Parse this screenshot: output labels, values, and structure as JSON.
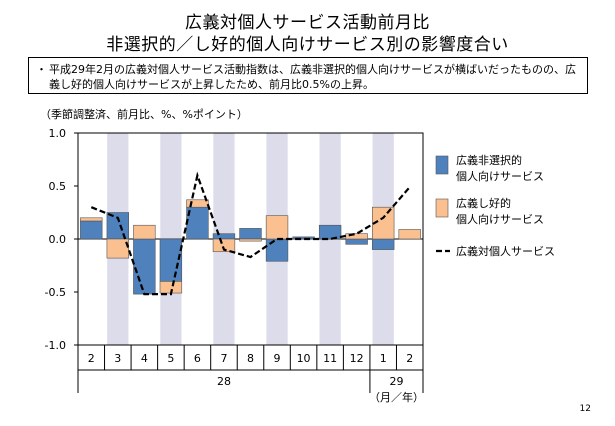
{
  "titles": {
    "line1": "広義対個人サービス活動前月比",
    "line2": "非選択的／し好的個人向けサービス別の影響度合い"
  },
  "summary": {
    "bullet": "・",
    "text": "平成29年2月の広義対個人サービス活動指数は、広義非選択的個人向けサービスが横ばいだったものの、広義し好的個人向けサービスが上昇したため、前月比0.5%の上昇。"
  },
  "units_note": "（季節調整済、前月比、%、%ポイント）",
  "page_number": "12",
  "colors": {
    "non_selective": "#4F81BD",
    "preference": "#FAC090",
    "shade": "#DCDCEB",
    "line": "#000000"
  },
  "chart_data": {
    "type": "bar",
    "stacked": true,
    "categories": [
      "2",
      "3",
      "4",
      "5",
      "6",
      "7",
      "8",
      "9",
      "10",
      "11",
      "12",
      "1",
      "2"
    ],
    "year_labels": [
      {
        "label": "28",
        "from": 0,
        "to": 10
      },
      {
        "label": "29",
        "from": 11,
        "to": 12
      }
    ],
    "axis_unit": "（月／年）",
    "ylim": [
      -1.0,
      1.0
    ],
    "yticks": [
      "1.0",
      "0.5",
      "0.0",
      "-0.5",
      "-1.0"
    ],
    "ytick_values": [
      1.0,
      0.5,
      0.0,
      -0.5,
      -1.0
    ],
    "shaded_categories": [
      1,
      3,
      5,
      7,
      9,
      11
    ],
    "series": [
      {
        "name": "広義非選択的個人向けサービス",
        "kind": "bar",
        "values": [
          0.17,
          0.25,
          -0.52,
          -0.4,
          0.3,
          0.05,
          0.1,
          -0.21,
          0.02,
          0.13,
          -0.05,
          -0.1,
          0.0
        ]
      },
      {
        "name": "広義し好的個人向けサービス",
        "kind": "bar",
        "values": [
          0.03,
          -0.18,
          0.13,
          -0.11,
          0.07,
          -0.12,
          -0.02,
          0.22,
          0.0,
          0.0,
          0.05,
          0.3,
          0.09
        ]
      },
      {
        "name": "広義対個人サービス",
        "kind": "line",
        "dashed": true,
        "values": [
          0.3,
          0.2,
          -0.52,
          -0.52,
          0.6,
          -0.1,
          -0.17,
          0.0,
          0.0,
          0.0,
          0.05,
          0.2,
          0.49
        ]
      }
    ],
    "legend": [
      {
        "line1": "広義非選択的",
        "line2": "個人向けサービス"
      },
      {
        "line1": "広義し好的",
        "line2": "個人向けサービス"
      },
      {
        "line1": "広義対個人サービス",
        "line2": ""
      }
    ],
    "legend_position": "right"
  }
}
